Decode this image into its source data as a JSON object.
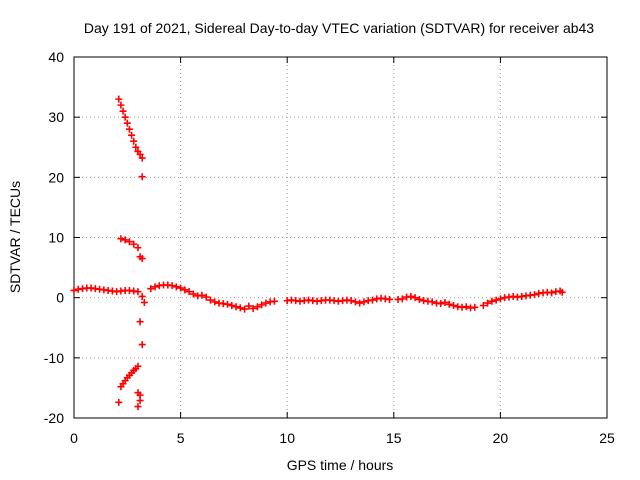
{
  "chart_data": {
    "type": "scatter",
    "title": "Day 191 of 2021, Sidereal Day-to-day VTEC variation (SDTVAR) for receiver ab43",
    "xlabel": "GPS time / hours",
    "ylabel": "SDTVAR / TECUs",
    "xlim": [
      0,
      25
    ],
    "ylim": [
      -20,
      40
    ],
    "x_ticks": [
      0,
      5,
      10,
      15,
      20,
      25
    ],
    "y_ticks": [
      -20,
      -10,
      0,
      10,
      20,
      30,
      40
    ],
    "grid": true,
    "marker": "+",
    "color": "#ff0000",
    "series": [
      {
        "name": "main",
        "points": [
          [
            0.0,
            1.2
          ],
          [
            0.2,
            1.4
          ],
          [
            0.4,
            1.5
          ],
          [
            0.6,
            1.6
          ],
          [
            0.8,
            1.6
          ],
          [
            1.0,
            1.5
          ],
          [
            1.2,
            1.4
          ],
          [
            1.4,
            1.3
          ],
          [
            1.6,
            1.2
          ],
          [
            1.8,
            1.1
          ],
          [
            2.0,
            1.0
          ],
          [
            2.2,
            1.1
          ],
          [
            2.4,
            1.2
          ],
          [
            2.6,
            1.2
          ],
          [
            2.8,
            1.1
          ],
          [
            3.0,
            1.0
          ],
          [
            3.6,
            1.5
          ],
          [
            3.8,
            1.8
          ],
          [
            4.0,
            2.0
          ],
          [
            4.2,
            2.1
          ],
          [
            4.4,
            2.1
          ],
          [
            4.6,
            2.0
          ],
          [
            4.8,
            1.8
          ],
          [
            5.0,
            1.6
          ],
          [
            5.2,
            1.3
          ],
          [
            5.4,
            1.0
          ],
          [
            5.6,
            0.6
          ],
          [
            5.8,
            0.3
          ],
          [
            6.0,
            0.4
          ],
          [
            6.2,
            0.1
          ],
          [
            6.4,
            -0.4
          ],
          [
            6.6,
            -0.7
          ],
          [
            6.8,
            -0.9
          ],
          [
            7.0,
            -1.0
          ],
          [
            7.2,
            -1.1
          ],
          [
            7.4,
            -1.3
          ],
          [
            7.6,
            -1.5
          ],
          [
            7.8,
            -1.7
          ],
          [
            8.0,
            -1.9
          ],
          [
            8.2,
            -1.4
          ],
          [
            8.4,
            -1.8
          ],
          [
            8.6,
            -1.5
          ],
          [
            8.8,
            -1.2
          ],
          [
            9.0,
            -0.9
          ],
          [
            9.2,
            -0.7
          ],
          [
            9.4,
            -0.6
          ],
          [
            10.0,
            -0.5
          ],
          [
            10.2,
            -0.4
          ],
          [
            10.4,
            -0.5
          ],
          [
            10.6,
            -0.6
          ],
          [
            10.8,
            -0.5
          ],
          [
            11.0,
            -0.4
          ],
          [
            11.2,
            -0.5
          ],
          [
            11.4,
            -0.6
          ],
          [
            11.6,
            -0.5
          ],
          [
            11.8,
            -0.4
          ],
          [
            12.0,
            -0.4
          ],
          [
            12.2,
            -0.5
          ],
          [
            12.4,
            -0.6
          ],
          [
            12.6,
            -0.5
          ],
          [
            12.8,
            -0.4
          ],
          [
            13.0,
            -0.5
          ],
          [
            13.2,
            -0.7
          ],
          [
            13.4,
            -0.9
          ],
          [
            13.6,
            -0.7
          ],
          [
            13.8,
            -0.5
          ],
          [
            14.0,
            -0.4
          ],
          [
            14.2,
            -0.2
          ],
          [
            14.4,
            -0.1
          ],
          [
            14.6,
            -0.2
          ],
          [
            14.8,
            -0.3
          ],
          [
            15.2,
            -0.3
          ],
          [
            15.4,
            -0.2
          ],
          [
            15.6,
            0.1
          ],
          [
            15.8,
            0.2
          ],
          [
            16.0,
            0.0
          ],
          [
            16.2,
            -0.3
          ],
          [
            16.4,
            -0.5
          ],
          [
            16.6,
            -0.6
          ],
          [
            16.8,
            -0.7
          ],
          [
            17.0,
            -0.9
          ],
          [
            17.2,
            -1.0
          ],
          [
            17.4,
            -0.8
          ],
          [
            17.6,
            -1.1
          ],
          [
            17.8,
            -1.3
          ],
          [
            18.0,
            -1.5
          ],
          [
            18.2,
            -1.6
          ],
          [
            18.4,
            -1.5
          ],
          [
            18.6,
            -1.7
          ],
          [
            18.8,
            -1.6
          ],
          [
            19.2,
            -1.3
          ],
          [
            19.4,
            -0.9
          ],
          [
            19.6,
            -0.6
          ],
          [
            19.8,
            -0.4
          ],
          [
            20.0,
            -0.2
          ],
          [
            20.2,
            0.0
          ],
          [
            20.4,
            0.1
          ],
          [
            20.6,
            0.2
          ],
          [
            20.8,
            0.1
          ],
          [
            21.0,
            0.2
          ],
          [
            21.2,
            0.3
          ],
          [
            21.4,
            0.4
          ],
          [
            21.6,
            0.5
          ],
          [
            21.8,
            0.7
          ],
          [
            22.0,
            0.8
          ],
          [
            22.2,
            0.9
          ],
          [
            22.4,
            0.8
          ],
          [
            22.6,
            1.0
          ],
          [
            22.8,
            1.1
          ],
          [
            22.9,
            0.9
          ]
        ]
      },
      {
        "name": "upper-arc-high",
        "points": [
          [
            2.1,
            33.0
          ],
          [
            2.2,
            32.0
          ],
          [
            2.3,
            31.0
          ],
          [
            2.4,
            30.0
          ],
          [
            2.5,
            29.0
          ],
          [
            2.6,
            28.0
          ],
          [
            2.7,
            27.0
          ],
          [
            2.8,
            26.0
          ],
          [
            2.9,
            25.0
          ],
          [
            3.0,
            24.3
          ],
          [
            3.1,
            23.8
          ],
          [
            3.2,
            23.2
          ],
          [
            3.2,
            20.1
          ]
        ]
      },
      {
        "name": "upper-arc-low",
        "points": [
          [
            2.2,
            9.8
          ],
          [
            2.4,
            9.6
          ],
          [
            2.6,
            9.3
          ],
          [
            2.8,
            8.9
          ],
          [
            3.0,
            8.3
          ],
          [
            3.1,
            6.8
          ],
          [
            3.2,
            6.5
          ]
        ]
      },
      {
        "name": "lower-arc",
        "points": [
          [
            2.2,
            -14.8
          ],
          [
            2.3,
            -14.3
          ],
          [
            2.4,
            -13.8
          ],
          [
            2.5,
            -13.3
          ],
          [
            2.6,
            -12.9
          ],
          [
            2.7,
            -12.5
          ],
          [
            2.8,
            -12.1
          ],
          [
            2.9,
            -11.8
          ],
          [
            3.0,
            -11.4
          ],
          [
            2.1,
            -17.4
          ],
          [
            3.0,
            -18.1
          ],
          [
            3.1,
            -17.1
          ],
          [
            3.1,
            -16.2
          ],
          [
            3.0,
            -15.8
          ],
          [
            3.1,
            -4.0
          ],
          [
            3.2,
            -7.8
          ],
          [
            3.2,
            0.2
          ],
          [
            3.3,
            -0.8
          ]
        ]
      }
    ]
  }
}
